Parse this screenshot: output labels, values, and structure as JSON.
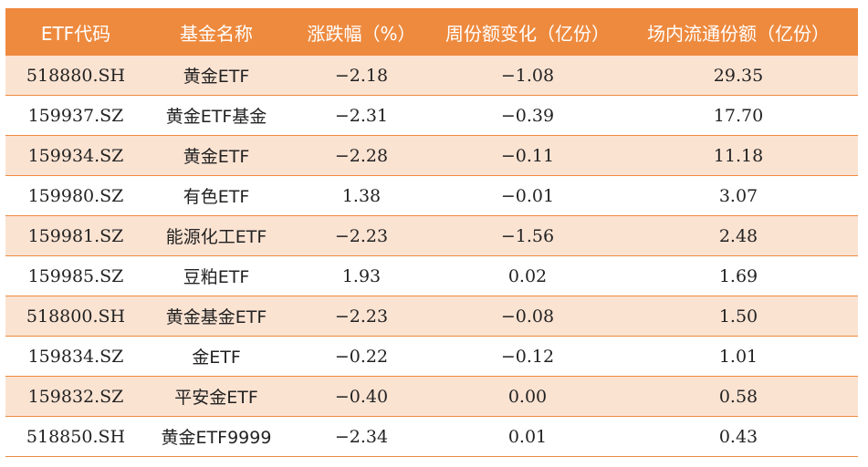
{
  "table": {
    "headers": [
      "ETF代码",
      "基金名称",
      "涨跌幅（%）",
      "周份额变化（亿份）",
      "场内流通份额（亿份）"
    ],
    "rows": [
      [
        "518880.SH",
        "黄金ETF",
        "−2.18",
        "−1.08",
        "29.35"
      ],
      [
        "159937.SZ",
        "黄金ETF基金",
        "−2.31",
        "−0.39",
        "17.70"
      ],
      [
        "159934.SZ",
        "黄金ETF",
        "−2.28",
        "−0.11",
        "11.18"
      ],
      [
        "159980.SZ",
        "有色ETF",
        "1.38",
        "−0.01",
        "3.07"
      ],
      [
        "159981.SZ",
        "能源化工ETF",
        "−2.23",
        "−1.56",
        "2.48"
      ],
      [
        "159985.SZ",
        "豆粕ETF",
        "1.93",
        "0.02",
        "1.69"
      ],
      [
        "518800.SH",
        "黄金基金ETF",
        "−2.23",
        "−0.08",
        "1.50"
      ],
      [
        "159834.SZ",
        "金ETF",
        "−0.22",
        "−0.12",
        "1.01"
      ],
      [
        "159832.SZ",
        "平安金ETF",
        "−0.40",
        "0.00",
        "0.58"
      ],
      [
        "518850.SH",
        "黄金ETF9999",
        "−2.34",
        "0.01",
        "0.43"
      ]
    ]
  },
  "colors": {
    "header_bg": "#ee8a3e",
    "header_text": "#ffffff",
    "stripe_bg": "#fbe3d2",
    "row_border": "#ee8a3e"
  }
}
